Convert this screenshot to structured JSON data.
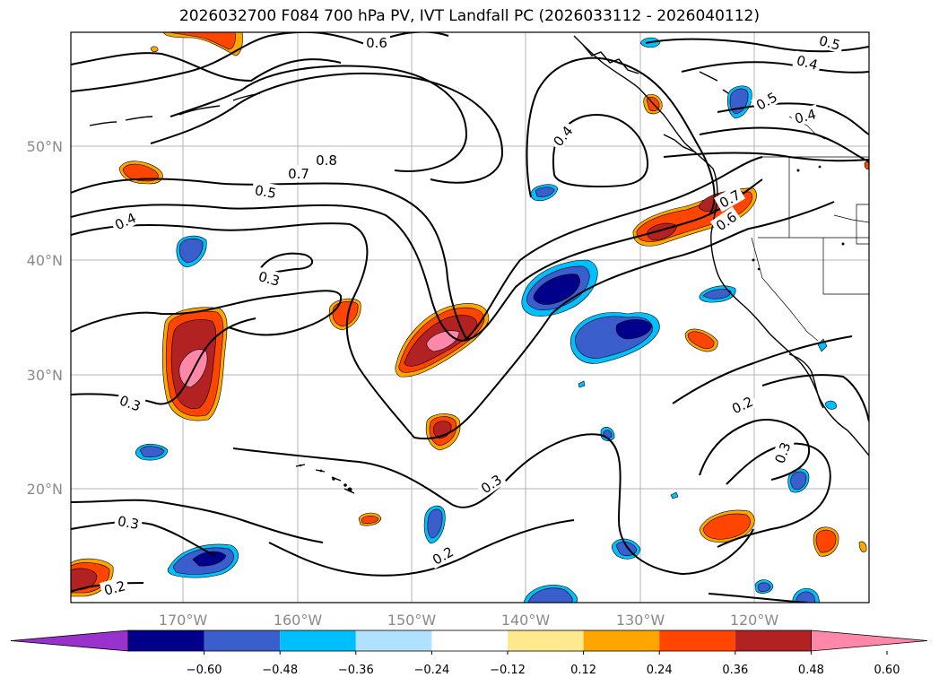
{
  "title": "2026032700 F084 700 hPa PV, IVT Landfall PC (2026033112 - 2026040112)",
  "lat_labels": [
    "50°N",
    "40°N",
    "30°N",
    "20°N"
  ],
  "lon_labels": [
    "170°W",
    "160°W",
    "150°W",
    "140°W",
    "130°W",
    "120°W"
  ],
  "contour_labels": [
    "0.6",
    "0.5",
    "0.4",
    "0.4",
    "0.5",
    "0.4",
    "0.8",
    "0.7",
    "0.5",
    "0.4",
    "0.7",
    "0.6",
    "0.3",
    "0.3",
    "0.2",
    "0.3",
    "0.3",
    "0.3",
    "0.2",
    "0.2"
  ],
  "colorbar": {
    "ticks": [
      "−0.60",
      "−0.48",
      "−0.36",
      "−0.24",
      "−0.12",
      "0.12",
      "0.24",
      "0.36",
      "0.48",
      "0.60"
    ],
    "colors": [
      "#9932cc",
      "#00008b",
      "#3a5fcd",
      "#00bfff",
      "#b0e2ff",
      "#ffffff",
      "#fee98f",
      "#ffa500",
      "#ff4500",
      "#b22222",
      "#ff88aa"
    ]
  }
}
